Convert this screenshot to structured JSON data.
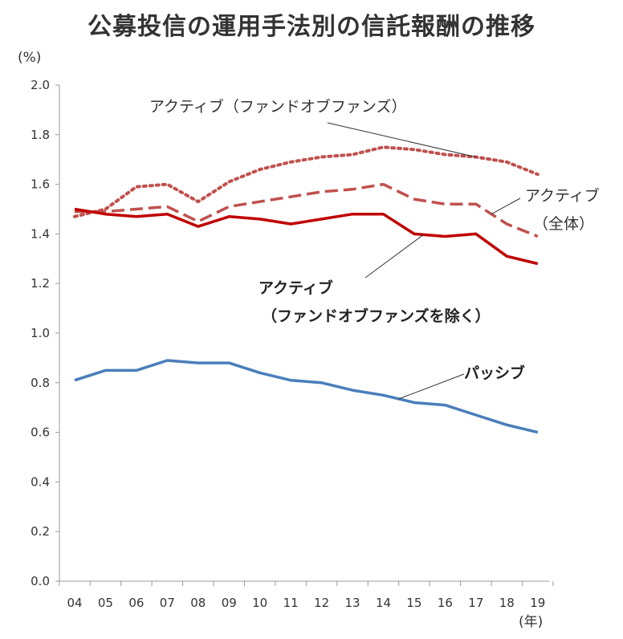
{
  "title": "公募投信の運用手法別の信託報酬の推移",
  "unit_label": "(%)",
  "xunit_label": "(年)",
  "chart_data": {
    "type": "line",
    "categories": [
      "04",
      "05",
      "06",
      "07",
      "08",
      "09",
      "10",
      "11",
      "12",
      "13",
      "14",
      "15",
      "16",
      "17",
      "18",
      "19"
    ],
    "ylim": [
      0.0,
      2.0
    ],
    "yticks": [
      "0.0",
      "0.2",
      "0.4",
      "0.6",
      "0.8",
      "1.0",
      "1.2",
      "1.4",
      "1.6",
      "1.8",
      "2.0"
    ],
    "grid": false,
    "series": [
      {
        "name": "アクティブ（ファンドオブファンズ）",
        "style": "dotted",
        "color": "#c0504d",
        "values": [
          1.47,
          1.5,
          1.59,
          1.6,
          1.53,
          1.61,
          1.66,
          1.69,
          1.71,
          1.72,
          1.75,
          1.74,
          1.72,
          1.71,
          1.69,
          1.64
        ]
      },
      {
        "name": "アクティブ（全体）",
        "style": "dashed",
        "color": "#c0504d",
        "values": [
          1.49,
          1.49,
          1.5,
          1.51,
          1.45,
          1.51,
          1.53,
          1.55,
          1.57,
          1.58,
          1.6,
          1.54,
          1.52,
          1.52,
          1.44,
          1.39
        ]
      },
      {
        "name": "アクティブ（ファンドオブファンズを除く）",
        "style": "solid",
        "color": "#c00000",
        "values": [
          1.5,
          1.48,
          1.47,
          1.48,
          1.43,
          1.47,
          1.46,
          1.44,
          1.46,
          1.48,
          1.48,
          1.4,
          1.39,
          1.4,
          1.31,
          1.28
        ]
      },
      {
        "name": "パッシブ",
        "style": "solid",
        "color": "#4a7ebb",
        "values": [
          0.81,
          0.85,
          0.85,
          0.89,
          0.88,
          0.88,
          0.84,
          0.81,
          0.8,
          0.77,
          0.75,
          0.72,
          0.71,
          0.67,
          0.63,
          0.6
        ]
      }
    ],
    "annotations": {
      "fof": "アクティブ（ファンドオブファンズ）",
      "all_line1": "アクティブ",
      "all_line2": "（全体）",
      "exfof_line1": "アクティブ",
      "exfof_line2": "（ファンドオブファンズを除く）",
      "passive": "パッシブ"
    }
  }
}
